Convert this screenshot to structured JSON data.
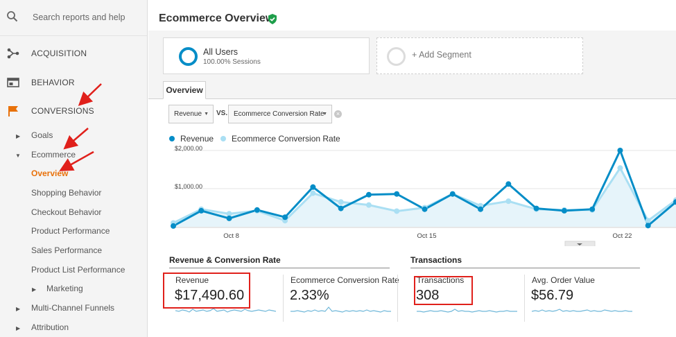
{
  "search": {
    "placeholder": "Search reports and help"
  },
  "sidebar": {
    "sections": [
      {
        "label": "ACQUISITION",
        "icon": "acquisition-icon"
      },
      {
        "label": "BEHAVIOR",
        "icon": "behavior-icon"
      },
      {
        "label": "CONVERSIONS",
        "icon": "flag-icon"
      }
    ],
    "goals": "Goals",
    "ecommerce": "Ecommerce",
    "overview": "Overview",
    "items": [
      "Shopping Behavior",
      "Checkout Behavior",
      "Product Performance",
      "Sales Performance",
      "Product List Performance"
    ],
    "marketing": "Marketing",
    "multichannel": "Multi-Channel Funnels",
    "attribution": "Attribution"
  },
  "header": {
    "title": "Ecommerce Overview"
  },
  "segments": {
    "all_users": "All Users",
    "sessions": "100.00% Sessions",
    "add": "+ Add Segment"
  },
  "tab": {
    "label": "Overview"
  },
  "controls": {
    "metric1": "Revenue",
    "vs": "VS.",
    "metric2": "Ecommerce Conversion Rate"
  },
  "legend": {
    "revenue": "Revenue",
    "ecr": "Ecommerce Conversion Rate"
  },
  "colors": {
    "revenue": "#058dc7",
    "ecr": "#aadff3",
    "accent": "#e8710a",
    "annotation": "#e0201b"
  },
  "chart_data": {
    "type": "line",
    "title": "",
    "y_ticks": [
      "$2,000.00",
      "$1,000.00"
    ],
    "ylim": [
      0,
      2000
    ],
    "x_ticks": [
      "Oct 8",
      "Oct 15",
      "Oct 22"
    ],
    "series": [
      {
        "name": "Revenue",
        "values": [
          20,
          420,
          220,
          440,
          250,
          1040,
          480,
          840,
          860,
          460,
          860,
          460,
          1120,
          480,
          420,
          460,
          2000,
          30,
          650
        ]
      },
      {
        "name": "Ecommerce Conversion Rate",
        "values": [
          100,
          460,
          340,
          420,
          160,
          880,
          650,
          570,
          410,
          500,
          860,
          550,
          670,
          460,
          440,
          440,
          1540,
          160,
          700
        ]
      }
    ]
  },
  "summary": {
    "group1": "Revenue & Conversion Rate",
    "group2": "Transactions",
    "tiles": [
      {
        "label": "Revenue",
        "value": "$17,490.60"
      },
      {
        "label": "Ecommerce Conversion Rate",
        "value": "2.33%"
      },
      {
        "label": "Transactions",
        "value": "308"
      },
      {
        "label": "Avg. Order Value",
        "value": "$56.79"
      }
    ]
  }
}
